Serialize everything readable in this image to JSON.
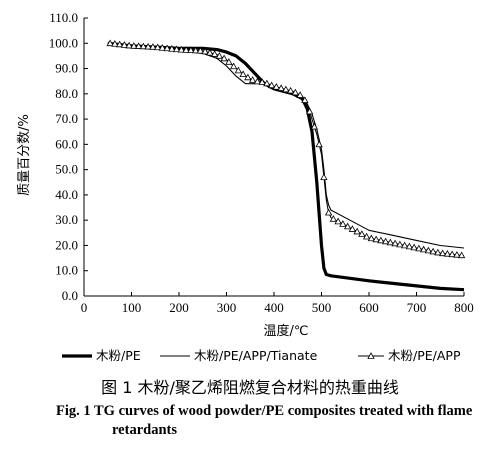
{
  "chart_data": {
    "type": "line",
    "xlabel": "温度/℃",
    "ylabel": "质量百分数/%",
    "xlim": [
      0,
      800
    ],
    "ylim": [
      0,
      110
    ],
    "x_ticks": [
      "0",
      "100",
      "200",
      "300",
      "400",
      "500",
      "600",
      "700",
      "800"
    ],
    "y_ticks": [
      "0.0",
      "10.0",
      "20.0",
      "30.0",
      "40.0",
      "50.0",
      "60.0",
      "70.0",
      "80.0",
      "90.0",
      "100.0",
      "110.0"
    ],
    "grid": false,
    "legend_position": "bottom",
    "series": [
      {
        "name": "木粉/PE",
        "style": "thick-line",
        "color": "#000000",
        "points": [
          [
            50,
            100
          ],
          [
            100,
            99
          ],
          [
            150,
            98.5
          ],
          [
            200,
            98
          ],
          [
            250,
            98
          ],
          [
            280,
            97.5
          ],
          [
            300,
            96.5
          ],
          [
            320,
            95
          ],
          [
            340,
            92
          ],
          [
            360,
            88
          ],
          [
            380,
            84
          ],
          [
            400,
            82
          ],
          [
            420,
            81
          ],
          [
            440,
            80
          ],
          [
            460,
            78
          ],
          [
            470,
            74
          ],
          [
            480,
            65
          ],
          [
            490,
            45
          ],
          [
            500,
            20
          ],
          [
            505,
            11
          ],
          [
            510,
            8.5
          ],
          [
            520,
            8
          ],
          [
            560,
            7
          ],
          [
            600,
            6
          ],
          [
            650,
            5
          ],
          [
            700,
            4
          ],
          [
            750,
            3
          ],
          [
            800,
            2.5
          ]
        ]
      },
      {
        "name": "木粉/PE/APP/Tianate",
        "style": "thin-line",
        "color": "#000000",
        "points": [
          [
            50,
            100
          ],
          [
            100,
            98.5
          ],
          [
            150,
            98
          ],
          [
            200,
            97
          ],
          [
            250,
            96
          ],
          [
            280,
            94
          ],
          [
            300,
            91
          ],
          [
            320,
            87
          ],
          [
            340,
            84
          ],
          [
            360,
            84
          ],
          [
            380,
            84.5
          ],
          [
            400,
            82
          ],
          [
            420,
            81
          ],
          [
            440,
            80
          ],
          [
            460,
            78
          ],
          [
            470,
            76
          ],
          [
            480,
            72
          ],
          [
            490,
            66
          ],
          [
            500,
            58
          ],
          [
            505,
            50
          ],
          [
            510,
            40
          ],
          [
            515,
            36
          ],
          [
            520,
            34
          ],
          [
            550,
            31
          ],
          [
            600,
            26
          ],
          [
            650,
            24
          ],
          [
            700,
            22
          ],
          [
            750,
            20
          ],
          [
            800,
            19
          ]
        ]
      },
      {
        "name": "木粉/PE/APP",
        "style": "line-with-triangles",
        "color": "#000000",
        "points": [
          [
            55,
            100
          ],
          [
            100,
            99
          ],
          [
            150,
            98.5
          ],
          [
            200,
            97.5
          ],
          [
            250,
            97
          ],
          [
            280,
            95.5
          ],
          [
            300,
            93.5
          ],
          [
            320,
            90
          ],
          [
            340,
            87
          ],
          [
            360,
            85
          ],
          [
            380,
            84.5
          ],
          [
            400,
            83
          ],
          [
            420,
            82
          ],
          [
            440,
            81
          ],
          [
            460,
            79
          ],
          [
            470,
            76
          ],
          [
            480,
            70
          ],
          [
            490,
            64
          ],
          [
            500,
            56
          ],
          [
            505,
            47
          ],
          [
            510,
            38
          ],
          [
            515,
            33
          ],
          [
            520,
            31
          ],
          [
            550,
            28
          ],
          [
            600,
            23
          ],
          [
            650,
            21
          ],
          [
            700,
            19
          ],
          [
            750,
            17
          ],
          [
            800,
            16
          ]
        ]
      }
    ]
  },
  "caption": {
    "cn": "图 1   木粉/聚乙烯阻燃复合材料的热重曲线",
    "en_number": "Fig. 1",
    "en_text": "Fig. 1    TG curves of wood powder/PE composites treated with flame retardants"
  }
}
